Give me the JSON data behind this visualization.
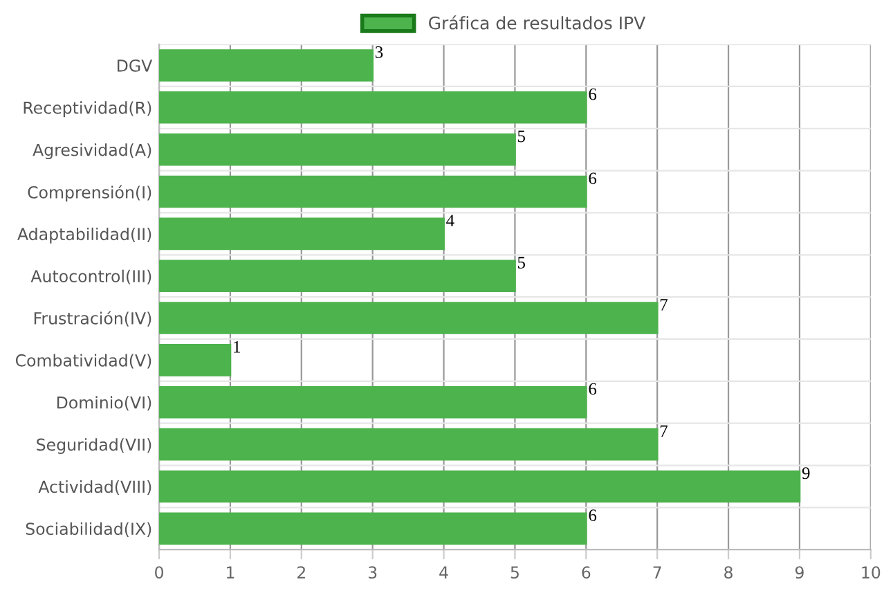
{
  "chart_data": {
    "type": "bar",
    "orientation": "horizontal",
    "categories": [
      "DGV",
      "Receptividad(R)",
      "Agresividad(A)",
      "Comprensión(I)",
      "Adaptabilidad(II)",
      "Autocontrol(III)",
      "Frustración(IV)",
      "Combatividad(V)",
      "Dominio(VI)",
      "Seguridad(VII)",
      "Actividad(VIII)",
      "Sociabilidad(IX)"
    ],
    "series": [
      {
        "name": "Gráfica de resultados IPV",
        "color": "#4db34d",
        "values": [
          3,
          6,
          5,
          6,
          4,
          5,
          7,
          1,
          6,
          7,
          9,
          6
        ]
      }
    ],
    "xlim": [
      0,
      10
    ],
    "xticks": [
      0,
      1,
      2,
      3,
      4,
      5,
      6,
      7,
      8,
      9,
      10
    ],
    "grid": true,
    "legend": "top",
    "data_labels": true
  }
}
